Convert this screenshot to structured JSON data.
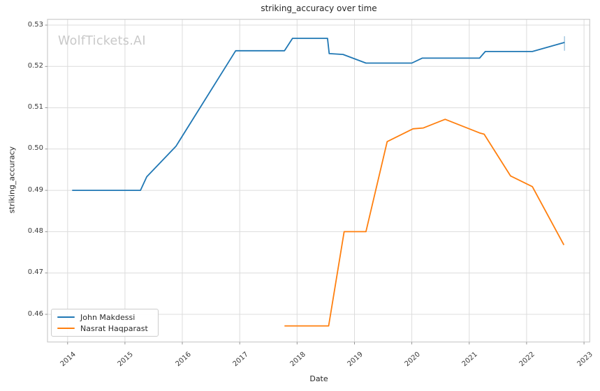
{
  "watermark": {
    "text": "WolfTickets.AI",
    "color": "#c9c9c9"
  },
  "colors": {
    "grid": "#dcdcdc",
    "spine": "#cccccc",
    "tick_mark": "#8a8a8a",
    "blue": "#1f77b4",
    "orange": "#ff7f0e"
  },
  "chart_data": {
    "type": "line",
    "title": "striking_accuracy over time",
    "xlabel": "Date",
    "ylabel": "striking_accuracy",
    "xlim": [
      2013.65,
      2023.1
    ],
    "ylim": [
      0.4533,
      0.5314
    ],
    "grid": true,
    "legend_position": "lower-left",
    "x_tick_labels": [
      "2014",
      "2015",
      "2016",
      "2017",
      "2018",
      "2019",
      "2020",
      "2021",
      "2022",
      "2023"
    ],
    "y_tick_labels": [
      "0.46",
      "0.47",
      "0.48",
      "0.49",
      "0.50",
      "0.51",
      "0.52",
      "0.53"
    ],
    "series": [
      {
        "name": "John Makdessi",
        "color": "#1f77b4",
        "points": [
          [
            2014.08,
            0.49
          ],
          [
            2015.27,
            0.49
          ],
          [
            2015.38,
            0.4933
          ],
          [
            2015.89,
            0.5007
          ],
          [
            2016.93,
            0.5238
          ],
          [
            2017.78,
            0.5238
          ],
          [
            2017.92,
            0.5268
          ],
          [
            2018.53,
            0.5268
          ],
          [
            2018.56,
            0.5231
          ],
          [
            2018.8,
            0.5229
          ],
          [
            2019.2,
            0.5208
          ],
          [
            2020.0,
            0.5208
          ],
          [
            2020.18,
            0.522
          ],
          [
            2021.18,
            0.522
          ],
          [
            2021.28,
            0.5236
          ],
          [
            2022.1,
            0.5236
          ],
          [
            2022.66,
            0.5258
          ]
        ],
        "end_marker": {
          "x": 2022.66,
          "y1": 0.5238,
          "y2": 0.5273
        }
      },
      {
        "name": "Nasrat Haqparast",
        "color": "#ff7f0e",
        "points": [
          [
            2017.78,
            0.4572
          ],
          [
            2018.55,
            0.4572
          ],
          [
            2018.82,
            0.48
          ],
          [
            2019.2,
            0.48
          ],
          [
            2019.57,
            0.5018
          ],
          [
            2020.02,
            0.5049
          ],
          [
            2020.2,
            0.5051
          ],
          [
            2020.58,
            0.5072
          ],
          [
            2021.18,
            0.5039
          ],
          [
            2021.26,
            0.5036
          ],
          [
            2021.72,
            0.4935
          ],
          [
            2022.1,
            0.4909
          ],
          [
            2022.65,
            0.4768
          ]
        ]
      }
    ]
  }
}
